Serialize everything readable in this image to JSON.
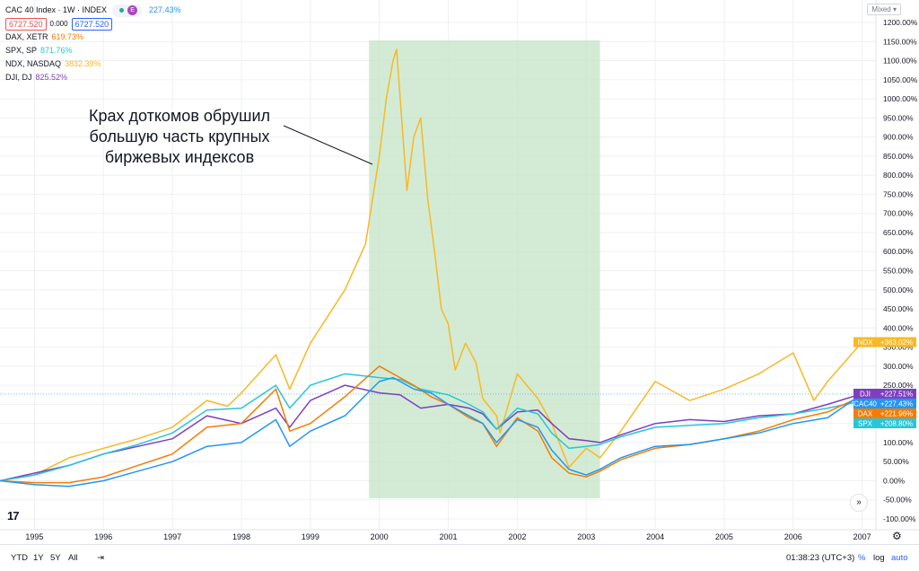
{
  "legend": {
    "title": "CAC 40 Index · 1W · INDEX",
    "title_change": "227.43%",
    "bid": "6727.520",
    "spread": "0.000",
    "ask": "6727.520",
    "badge_label": "E",
    "series": [
      {
        "label": "DAX, XETR",
        "value": "619.73%",
        "color": "#f57c00"
      },
      {
        "label": "SPX, SP",
        "value": "871.76%",
        "color": "#26c6da"
      },
      {
        "label": "NDX, NASDAQ",
        "value": "3832.39%",
        "color": "#f9b824"
      },
      {
        "label": "DJI, DJ",
        "value": "825.52%",
        "color": "#7e3fbf"
      }
    ]
  },
  "scale_mode": "Mixed",
  "annotation": "Крах доткомов обрушил большую часть крупных биржевых индексов",
  "bottom_bar": {
    "ranges": [
      "YTD",
      "1Y",
      "5Y",
      "All"
    ],
    "clock": "01:38:23 (UTC+3)",
    "percent": "%",
    "log": "log",
    "auto": "auto"
  },
  "logo": "17",
  "colors": {
    "cac40": "#2196f3",
    "dax": "#f57c00",
    "spx": "#26c6da",
    "ndx": "#f9b824",
    "dji": "#7e3fbf",
    "highlight": "#c8e6c9"
  },
  "chart_data": {
    "type": "line",
    "x_ticks": [
      "1995",
      "1996",
      "1997",
      "1998",
      "1999",
      "2000",
      "2001",
      "2002",
      "2003",
      "2004",
      "2005",
      "2006",
      "2007"
    ],
    "y_ticks": [
      "1200.00%",
      "1150.00%",
      "1100.00%",
      "1050.00%",
      "1000.00%",
      "950.00%",
      "900.00%",
      "850.00%",
      "800.00%",
      "750.00%",
      "700.00%",
      "650.00%",
      "600.00%",
      "550.00%",
      "500.00%",
      "450.00%",
      "400.00%",
      "350.00%",
      "300.00%",
      "250.00%",
      "200.00%",
      "150.00%",
      "100.00%",
      "50.00%",
      "0.00%",
      "-50.00%",
      "-100.00%"
    ],
    "xlim": [
      1994.5,
      2007.2
    ],
    "ylim": [
      -100,
      1200
    ],
    "highlight_range": [
      1999.85,
      2003.2
    ],
    "series": [
      {
        "name": "NDX",
        "tag": "NDX",
        "end_label": "+363.02%",
        "color": "#f9b824",
        "x": [
          1994.5,
          1995.0,
          1995.5,
          1996.0,
          1996.5,
          1997.0,
          1997.5,
          1997.8,
          1998.0,
          1998.5,
          1998.7,
          1999.0,
          1999.5,
          1999.8,
          2000.0,
          2000.1,
          2000.2,
          2000.25,
          2000.4,
          2000.5,
          2000.6,
          2000.7,
          2000.8,
          2000.9,
          2001.0,
          2001.1,
          2001.25,
          2001.4,
          2001.5,
          2001.7,
          2001.75,
          2002.0,
          2002.3,
          2002.5,
          2002.75,
          2003.0,
          2003.2,
          2003.5,
          2004.0,
          2004.5,
          2005.0,
          2005.5,
          2006.0,
          2006.3,
          2006.5,
          2007.0
        ],
        "y": [
          0,
          15,
          60,
          85,
          110,
          140,
          210,
          195,
          230,
          330,
          240,
          360,
          500,
          620,
          850,
          1000,
          1100,
          1130,
          760,
          900,
          950,
          740,
          600,
          450,
          410,
          290,
          360,
          310,
          215,
          170,
          125,
          280,
          215,
          150,
          35,
          85,
          60,
          130,
          260,
          210,
          240,
          280,
          335,
          210,
          260,
          363
        ]
      },
      {
        "name": "DJI",
        "tag": "DJI",
        "end_label": "+227.51%",
        "color": "#7e3fbf",
        "x": [
          1994.5,
          1995.0,
          1995.5,
          1996.0,
          1996.5,
          1997.0,
          1997.5,
          1998.0,
          1998.5,
          1998.7,
          1999.0,
          1999.5,
          2000.0,
          2000.3,
          2000.6,
          2001.0,
          2001.3,
          2001.5,
          2001.7,
          2002.0,
          2002.3,
          2002.5,
          2002.75,
          2003.0,
          2003.2,
          2003.5,
          2004.0,
          2004.5,
          2005.0,
          2005.5,
          2006.0,
          2006.5,
          2007.0
        ],
        "y": [
          0,
          20,
          40,
          70,
          90,
          110,
          170,
          150,
          190,
          140,
          210,
          250,
          230,
          225,
          190,
          200,
          190,
          175,
          135,
          180,
          185,
          150,
          110,
          105,
          100,
          120,
          150,
          160,
          155,
          170,
          175,
          200,
          228
        ]
      },
      {
        "name": "CAC40",
        "tag": "CAC40",
        "end_label": "+227.43%",
        "color": "#2196f3",
        "x": [
          1994.5,
          1995.0,
          1995.5,
          1996.0,
          1996.5,
          1997.0,
          1997.5,
          1998.0,
          1998.5,
          1998.7,
          1999.0,
          1999.5,
          2000.0,
          2000.2,
          2000.5,
          2000.75,
          2001.0,
          2001.3,
          2001.5,
          2001.7,
          2002.0,
          2002.3,
          2002.5,
          2002.75,
          2003.0,
          2003.2,
          2003.5,
          2004.0,
          2004.5,
          2005.0,
          2005.5,
          2006.0,
          2006.5,
          2007.0
        ],
        "y": [
          0,
          -10,
          -15,
          0,
          25,
          50,
          90,
          100,
          160,
          90,
          130,
          170,
          260,
          270,
          240,
          230,
          200,
          170,
          150,
          100,
          160,
          140,
          80,
          30,
          15,
          30,
          60,
          90,
          95,
          110,
          125,
          150,
          165,
          227
        ]
      },
      {
        "name": "DAX",
        "tag": "DAX",
        "end_label": "+221.96%",
        "color": "#f57c00",
        "x": [
          1994.5,
          1995.0,
          1995.5,
          1996.0,
          1996.5,
          1997.0,
          1997.5,
          1998.0,
          1998.5,
          1998.7,
          1999.0,
          1999.5,
          2000.0,
          2000.2,
          2000.5,
          2000.75,
          2001.0,
          2001.3,
          2001.5,
          2001.7,
          2002.0,
          2002.3,
          2002.5,
          2002.75,
          2003.0,
          2003.2,
          2003.5,
          2004.0,
          2004.5,
          2005.0,
          2005.5,
          2006.0,
          2006.5,
          2007.0
        ],
        "y": [
          0,
          -5,
          -5,
          10,
          40,
          70,
          140,
          150,
          240,
          130,
          150,
          220,
          300,
          280,
          250,
          220,
          200,
          165,
          150,
          90,
          165,
          130,
          60,
          20,
          10,
          25,
          55,
          85,
          95,
          110,
          130,
          160,
          180,
          222
        ]
      },
      {
        "name": "SPX",
        "tag": "SPX",
        "end_label": "+208.80%",
        "color": "#26c6da",
        "x": [
          1994.5,
          1995.0,
          1995.5,
          1996.0,
          1996.5,
          1997.0,
          1997.5,
          1998.0,
          1998.5,
          1998.7,
          1999.0,
          1999.5,
          2000.0,
          2000.3,
          2000.6,
          2001.0,
          2001.3,
          2001.5,
          2001.7,
          2002.0,
          2002.3,
          2002.5,
          2002.75,
          2003.0,
          2003.2,
          2003.5,
          2004.0,
          2004.5,
          2005.0,
          2005.5,
          2006.0,
          2006.5,
          2007.0
        ],
        "y": [
          0,
          15,
          40,
          70,
          95,
          125,
          185,
          190,
          250,
          190,
          250,
          280,
          270,
          265,
          240,
          225,
          200,
          180,
          135,
          190,
          175,
          125,
          85,
          90,
          95,
          115,
          140,
          145,
          150,
          165,
          175,
          190,
          209
        ]
      }
    ]
  }
}
